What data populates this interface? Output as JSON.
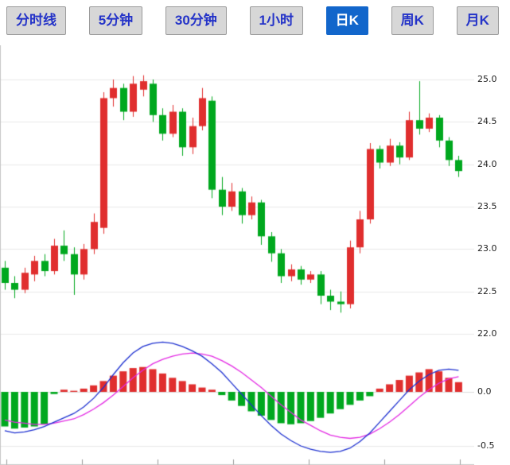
{
  "toolbar": {
    "tabs": [
      {
        "label": "分时线",
        "active": false
      },
      {
        "label": "5分钟",
        "active": false
      },
      {
        "label": "30分钟",
        "active": false
      },
      {
        "label": "1小时",
        "active": false
      },
      {
        "label": "日K",
        "active": true
      },
      {
        "label": "周K",
        "active": false
      },
      {
        "label": "月K",
        "active": false
      }
    ]
  },
  "colors": {
    "up": "#e02e2e",
    "down": "#00a81e",
    "dif_line": "#1c2fd0",
    "dea_line": "#e32ae3",
    "grid": "#e8e8e8",
    "axis_line": "#c6c6c6",
    "axis_text": "#222222"
  },
  "chart_data": {
    "type": "candlestick",
    "title": "",
    "price_axis": {
      "values": [
        25.0,
        24.5,
        24.0,
        23.5,
        23.0,
        22.5,
        22.0
      ],
      "labels": [
        "25.0",
        "24.5",
        "24.0",
        "23.5",
        "23.0",
        "22.5",
        "22.0"
      ],
      "min": 21.95,
      "max": 25.45
    },
    "macd_axis": {
      "values": [
        0.0,
        -0.5
      ],
      "labels": [
        "0.0",
        "-0.5"
      ],
      "min": -0.68,
      "max": 0.5
    },
    "candles_ohlc_format": [
      "open",
      "high",
      "low",
      "close"
    ],
    "candles": [
      [
        22.78,
        22.86,
        22.52,
        22.6
      ],
      [
        22.6,
        22.68,
        22.42,
        22.52
      ],
      [
        22.52,
        22.78,
        22.48,
        22.72
      ],
      [
        22.7,
        22.92,
        22.62,
        22.86
      ],
      [
        22.86,
        22.94,
        22.68,
        22.74
      ],
      [
        22.74,
        23.12,
        22.7,
        23.04
      ],
      [
        23.04,
        23.22,
        22.86,
        22.94
      ],
      [
        22.94,
        23.02,
        22.46,
        22.7
      ],
      [
        22.7,
        23.06,
        22.64,
        23.0
      ],
      [
        23.0,
        23.42,
        22.94,
        23.32
      ],
      [
        23.25,
        24.85,
        23.18,
        24.78
      ],
      [
        24.78,
        25.0,
        24.68,
        24.9
      ],
      [
        24.9,
        24.95,
        24.52,
        24.62
      ],
      [
        24.62,
        25.04,
        24.56,
        24.95
      ],
      [
        24.88,
        25.05,
        24.8,
        24.98
      ],
      [
        24.95,
        25.0,
        24.5,
        24.58
      ],
      [
        24.58,
        24.66,
        24.28,
        24.36
      ],
      [
        24.36,
        24.7,
        24.32,
        24.62
      ],
      [
        24.62,
        24.66,
        24.1,
        24.2
      ],
      [
        24.2,
        24.55,
        24.12,
        24.45
      ],
      [
        24.45,
        24.9,
        24.4,
        24.78
      ],
      [
        24.75,
        24.8,
        23.6,
        23.7
      ],
      [
        23.7,
        23.85,
        23.4,
        23.5
      ],
      [
        23.5,
        23.78,
        23.45,
        23.68
      ],
      [
        23.68,
        23.72,
        23.3,
        23.4
      ],
      [
        23.4,
        23.62,
        23.35,
        23.55
      ],
      [
        23.55,
        23.58,
        23.05,
        23.15
      ],
      [
        23.15,
        23.2,
        22.85,
        22.95
      ],
      [
        22.95,
        23.0,
        22.6,
        22.68
      ],
      [
        22.68,
        22.82,
        22.62,
        22.76
      ],
      [
        22.76,
        22.8,
        22.58,
        22.64
      ],
      [
        22.64,
        22.74,
        22.6,
        22.7
      ],
      [
        22.7,
        22.74,
        22.35,
        22.45
      ],
      [
        22.45,
        22.52,
        22.28,
        22.38
      ],
      [
        22.38,
        22.5,
        22.25,
        22.35
      ],
      [
        22.35,
        23.1,
        22.3,
        23.02
      ],
      [
        23.02,
        23.45,
        22.95,
        23.35
      ],
      [
        23.35,
        24.25,
        23.3,
        24.18
      ],
      [
        24.18,
        24.22,
        23.95,
        24.02
      ],
      [
        24.02,
        24.3,
        23.98,
        24.22
      ],
      [
        24.22,
        24.26,
        24.0,
        24.08
      ],
      [
        24.08,
        24.62,
        24.05,
        24.52
      ],
      [
        24.52,
        24.98,
        24.35,
        24.42
      ],
      [
        24.42,
        24.6,
        24.38,
        24.55
      ],
      [
        24.55,
        24.58,
        24.2,
        24.28
      ],
      [
        24.28,
        24.32,
        23.98,
        24.05
      ],
      [
        24.05,
        24.1,
        23.85,
        23.92
      ]
    ],
    "macd": {
      "histogram": [
        -0.32,
        -0.34,
        -0.33,
        -0.32,
        -0.3,
        -0.02,
        0.02,
        0.01,
        0.03,
        0.06,
        0.1,
        0.15,
        0.19,
        0.22,
        0.23,
        0.21,
        0.17,
        0.13,
        0.1,
        0.07,
        0.04,
        0.02,
        -0.03,
        -0.08,
        -0.13,
        -0.18,
        -0.22,
        -0.26,
        -0.29,
        -0.3,
        -0.29,
        -0.27,
        -0.24,
        -0.2,
        -0.16,
        -0.12,
        -0.08,
        -0.04,
        0.03,
        0.07,
        0.11,
        0.15,
        0.18,
        0.21,
        0.19,
        0.13,
        0.09
      ],
      "dif": [
        -0.36,
        -0.38,
        -0.37,
        -0.35,
        -0.32,
        -0.28,
        -0.24,
        -0.2,
        -0.14,
        -0.06,
        0.04,
        0.16,
        0.27,
        0.36,
        0.42,
        0.45,
        0.46,
        0.45,
        0.42,
        0.38,
        0.33,
        0.26,
        0.18,
        0.08,
        -0.02,
        -0.12,
        -0.22,
        -0.31,
        -0.39,
        -0.45,
        -0.5,
        -0.53,
        -0.55,
        -0.56,
        -0.55,
        -0.52,
        -0.46,
        -0.38,
        -0.28,
        -0.18,
        -0.08,
        0.02,
        0.1,
        0.16,
        0.2,
        0.21,
        0.2
      ],
      "dea": [
        -0.26,
        -0.28,
        -0.29,
        -0.3,
        -0.3,
        -0.29,
        -0.27,
        -0.25,
        -0.21,
        -0.16,
        -0.1,
        -0.03,
        0.05,
        0.13,
        0.2,
        0.26,
        0.3,
        0.33,
        0.35,
        0.36,
        0.35,
        0.33,
        0.29,
        0.24,
        0.18,
        0.11,
        0.04,
        -0.04,
        -0.12,
        -0.19,
        -0.26,
        -0.31,
        -0.36,
        -0.4,
        -0.42,
        -0.43,
        -0.42,
        -0.39,
        -0.34,
        -0.28,
        -0.21,
        -0.13,
        -0.05,
        0.02,
        0.08,
        0.12,
        0.14
      ]
    }
  }
}
